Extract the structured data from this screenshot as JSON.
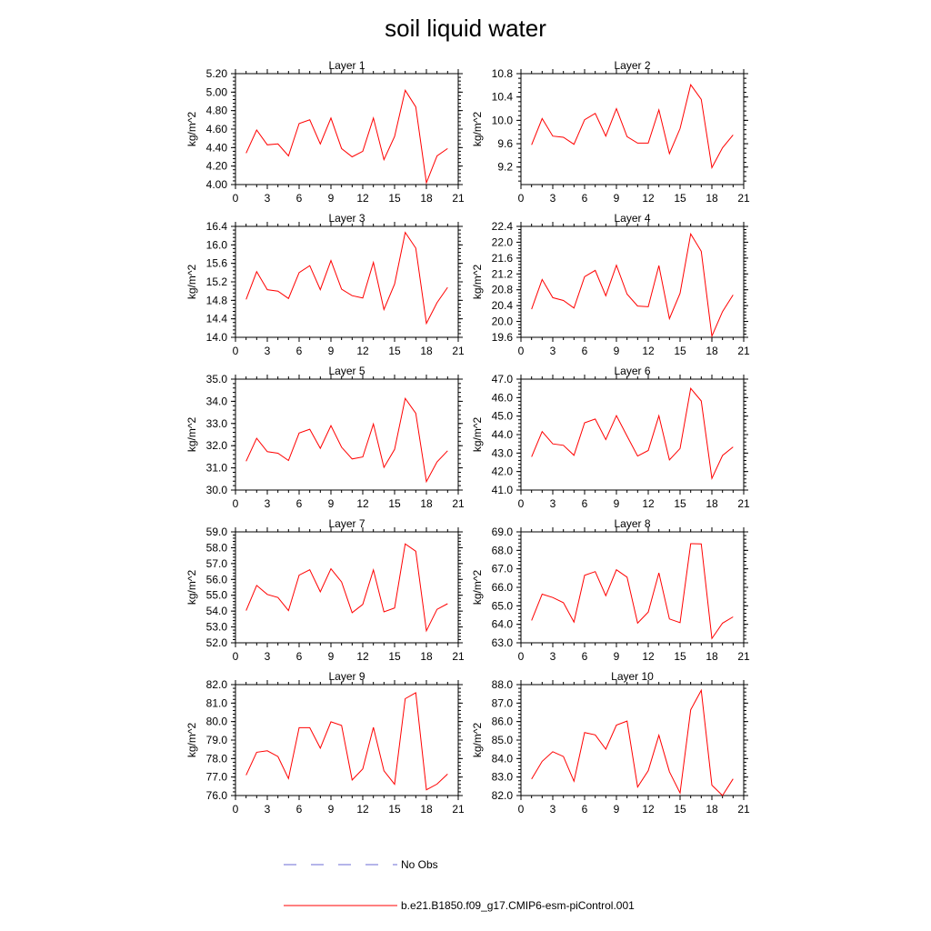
{
  "figure": {
    "title": "soil liquid water",
    "legend": [
      {
        "label": "No Obs",
        "color": "#6b6bd6",
        "dash": "dashed"
      },
      {
        "label": "b.e21.B1850.f09_g17.CMIP6-esm-piControl.001",
        "color": "#ff0000",
        "dash": "solid"
      }
    ]
  },
  "chart_data": [
    {
      "type": "line",
      "title": "Layer 1",
      "ylabel": "kg/m^2",
      "xlim": [
        0,
        21
      ],
      "ylim": [
        4.0,
        5.2
      ],
      "xticks": [
        0,
        3,
        6,
        9,
        12,
        15,
        18,
        21
      ],
      "yticks": [
        "4.00",
        "4.20",
        "4.40",
        "4.60",
        "4.80",
        "5.00",
        "5.20"
      ],
      "series": [
        {
          "color": "#ff0000",
          "x": [
            1,
            2,
            3,
            4,
            5,
            6,
            7,
            8,
            9,
            10,
            11,
            12,
            13,
            14,
            15,
            16,
            17,
            18,
            19,
            20
          ],
          "y": [
            4.34,
            4.59,
            4.43,
            4.44,
            4.31,
            4.66,
            4.7,
            4.44,
            4.72,
            4.39,
            4.3,
            4.36,
            4.72,
            4.27,
            4.52,
            5.02,
            4.84,
            4.02,
            4.31,
            4.39
          ]
        }
      ]
    },
    {
      "type": "line",
      "title": "Layer 2",
      "ylabel": "kg/m^2",
      "xlim": [
        0,
        21
      ],
      "ylim": [
        8.9,
        10.8
      ],
      "xticks": [
        0,
        3,
        6,
        9,
        12,
        15,
        18,
        21
      ],
      "yticks": [
        "9.2",
        "9.6",
        "10.0",
        "10.4",
        "10.8"
      ],
      "series": [
        {
          "color": "#ff0000",
          "x": [
            1,
            2,
            3,
            4,
            5,
            6,
            7,
            8,
            9,
            10,
            11,
            12,
            13,
            14,
            15,
            16,
            17,
            18,
            19,
            20
          ],
          "y": [
            9.58,
            10.03,
            9.73,
            9.71,
            9.59,
            10.01,
            10.12,
            9.73,
            10.2,
            9.72,
            9.61,
            9.61,
            10.18,
            9.43,
            9.86,
            10.61,
            10.36,
            9.19,
            9.53,
            9.75
          ]
        }
      ]
    },
    {
      "type": "line",
      "title": "Layer 3",
      "ylabel": "kg/m^2",
      "xlim": [
        0,
        21
      ],
      "ylim": [
        14.0,
        16.4
      ],
      "xticks": [
        0,
        3,
        6,
        9,
        12,
        15,
        18,
        21
      ],
      "yticks": [
        "14.0",
        "14.4",
        "14.8",
        "15.2",
        "15.6",
        "16.0",
        "16.4"
      ],
      "series": [
        {
          "color": "#ff0000",
          "x": [
            1,
            2,
            3,
            4,
            5,
            6,
            7,
            8,
            9,
            10,
            11,
            12,
            13,
            14,
            15,
            16,
            17,
            18,
            19,
            20
          ],
          "y": [
            14.82,
            15.42,
            15.03,
            15.0,
            14.84,
            15.4,
            15.55,
            15.03,
            15.66,
            15.04,
            14.9,
            14.85,
            15.62,
            14.6,
            15.15,
            16.27,
            15.93,
            14.3,
            14.75,
            15.08
          ]
        }
      ]
    },
    {
      "type": "line",
      "title": "Layer 4",
      "ylabel": "kg/m^2",
      "xlim": [
        0,
        21
      ],
      "ylim": [
        19.6,
        22.4
      ],
      "xticks": [
        0,
        3,
        6,
        9,
        12,
        15,
        18,
        21
      ],
      "yticks": [
        "19.6",
        "20.0",
        "20.4",
        "20.8",
        "21.2",
        "21.6",
        "22.0",
        "22.4"
      ],
      "series": [
        {
          "color": "#ff0000",
          "x": [
            1,
            2,
            3,
            4,
            5,
            6,
            7,
            8,
            9,
            10,
            11,
            12,
            13,
            14,
            15,
            16,
            17,
            18,
            19,
            20
          ],
          "y": [
            20.31,
            21.06,
            20.6,
            20.53,
            20.34,
            21.13,
            21.29,
            20.65,
            21.42,
            20.69,
            20.39,
            20.37,
            21.41,
            20.07,
            20.71,
            22.21,
            21.77,
            19.63,
            20.25,
            20.67
          ]
        }
      ]
    },
    {
      "type": "line",
      "title": "Layer 5",
      "ylabel": "kg/m^2",
      "xlim": [
        0,
        21
      ],
      "ylim": [
        30.0,
        35.0
      ],
      "xticks": [
        0,
        3,
        6,
        9,
        12,
        15,
        18,
        21
      ],
      "yticks": [
        "30.0",
        "31.0",
        "32.0",
        "33.0",
        "34.0",
        "35.0"
      ],
      "series": [
        {
          "color": "#ff0000",
          "x": [
            1,
            2,
            3,
            4,
            5,
            6,
            7,
            8,
            9,
            10,
            11,
            12,
            13,
            14,
            15,
            16,
            17,
            18,
            19,
            20
          ],
          "y": [
            31.3,
            32.33,
            31.73,
            31.66,
            31.33,
            32.57,
            32.74,
            31.88,
            32.9,
            31.93,
            31.4,
            31.49,
            32.98,
            31.02,
            31.83,
            34.13,
            33.46,
            30.38,
            31.27,
            31.77
          ]
        }
      ]
    },
    {
      "type": "line",
      "title": "Layer 6",
      "ylabel": "kg/m^2",
      "xlim": [
        0,
        21
      ],
      "ylim": [
        41.0,
        47.0
      ],
      "xticks": [
        0,
        3,
        6,
        9,
        12,
        15,
        18,
        21
      ],
      "yticks": [
        "41.0",
        "42.0",
        "43.0",
        "44.0",
        "45.0",
        "46.0",
        "47.0"
      ],
      "series": [
        {
          "color": "#ff0000",
          "x": [
            1,
            2,
            3,
            4,
            5,
            6,
            7,
            8,
            9,
            10,
            11,
            12,
            13,
            14,
            15,
            16,
            17,
            18,
            19,
            20
          ],
          "y": [
            42.8,
            44.16,
            43.5,
            43.42,
            42.88,
            44.64,
            44.84,
            43.73,
            45.03,
            43.92,
            42.84,
            43.14,
            45.02,
            42.63,
            43.25,
            46.5,
            45.82,
            41.63,
            42.87,
            43.33
          ]
        }
      ]
    },
    {
      "type": "line",
      "title": "Layer 7",
      "ylabel": "kg/m^2",
      "xlim": [
        0,
        21
      ],
      "ylim": [
        52.0,
        59.0
      ],
      "xticks": [
        0,
        3,
        6,
        9,
        12,
        15,
        18,
        21
      ],
      "yticks": [
        "52.0",
        "53.0",
        "54.0",
        "55.0",
        "56.0",
        "57.0",
        "58.0",
        "59.0"
      ],
      "series": [
        {
          "color": "#ff0000",
          "x": [
            1,
            2,
            3,
            4,
            5,
            6,
            7,
            8,
            9,
            10,
            11,
            12,
            13,
            14,
            15,
            16,
            17,
            18,
            19,
            20
          ],
          "y": [
            54.03,
            55.62,
            55.05,
            54.86,
            54.03,
            56.27,
            56.61,
            55.22,
            56.67,
            55.84,
            53.9,
            54.42,
            56.6,
            53.95,
            54.2,
            58.24,
            57.78,
            52.76,
            54.11,
            54.47
          ]
        }
      ]
    },
    {
      "type": "line",
      "title": "Layer 8",
      "ylabel": "kg/m^2",
      "xlim": [
        0,
        21
      ],
      "ylim": [
        63.0,
        69.0
      ],
      "xticks": [
        0,
        3,
        6,
        9,
        12,
        15,
        18,
        21
      ],
      "yticks": [
        "63.0",
        "64.0",
        "65.0",
        "66.0",
        "67.0",
        "68.0",
        "69.0"
      ],
      "series": [
        {
          "color": "#ff0000",
          "x": [
            1,
            2,
            3,
            4,
            5,
            6,
            7,
            8,
            9,
            10,
            11,
            12,
            13,
            14,
            15,
            16,
            17,
            18,
            19,
            20
          ],
          "y": [
            64.21,
            65.63,
            65.45,
            65.17,
            64.12,
            66.65,
            66.85,
            65.55,
            66.95,
            66.55,
            64.06,
            64.66,
            66.78,
            64.29,
            64.09,
            68.36,
            68.35,
            63.23,
            64.06,
            64.4
          ]
        }
      ]
    },
    {
      "type": "line",
      "title": "Layer 9",
      "ylabel": "kg/m^2",
      "xlim": [
        0,
        21
      ],
      "ylim": [
        76.0,
        82.0
      ],
      "xticks": [
        0,
        3,
        6,
        9,
        12,
        15,
        18,
        21
      ],
      "yticks": [
        "76.0",
        "77.0",
        "78.0",
        "79.0",
        "80.0",
        "81.0",
        "82.0"
      ],
      "series": [
        {
          "color": "#ff0000",
          "x": [
            1,
            2,
            3,
            4,
            5,
            6,
            7,
            8,
            9,
            10,
            11,
            12,
            13,
            14,
            15,
            16,
            17,
            18,
            19,
            20
          ],
          "y": [
            77.1,
            78.34,
            78.42,
            78.11,
            76.92,
            79.67,
            79.67,
            78.56,
            79.99,
            79.79,
            76.84,
            77.44,
            79.69,
            77.34,
            76.61,
            81.24,
            81.56,
            76.31,
            76.62,
            77.16
          ]
        }
      ]
    },
    {
      "type": "line",
      "title": "Layer 10",
      "ylabel": "kg/m^2",
      "xlim": [
        0,
        21
      ],
      "ylim": [
        82.0,
        88.0
      ],
      "xticks": [
        0,
        3,
        6,
        9,
        12,
        15,
        18,
        21
      ],
      "yticks": [
        "82.0",
        "83.0",
        "84.0",
        "85.0",
        "86.0",
        "87.0",
        "88.0"
      ],
      "series": [
        {
          "color": "#ff0000",
          "x": [
            1,
            2,
            3,
            4,
            5,
            6,
            7,
            8,
            9,
            10,
            11,
            12,
            13,
            14,
            15,
            16,
            17,
            18,
            19,
            20
          ],
          "y": [
            82.89,
            83.85,
            84.37,
            84.11,
            82.77,
            85.41,
            85.28,
            84.51,
            85.81,
            86.03,
            82.46,
            83.35,
            85.26,
            83.29,
            82.14,
            86.64,
            87.69,
            82.56,
            82.0,
            82.9
          ]
        }
      ]
    }
  ]
}
